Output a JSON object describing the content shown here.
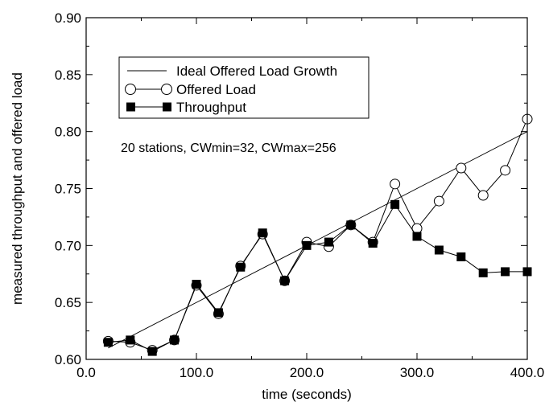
{
  "chart_data": {
    "type": "line",
    "title": "",
    "xlabel": "time (seconds)",
    "ylabel": "measured throughput and offered load",
    "xlim": [
      0,
      400
    ],
    "ylim": [
      0.6,
      0.9
    ],
    "x_ticks": [
      0,
      100,
      200,
      300,
      400
    ],
    "x_tick_labels": [
      "0.0",
      "100.0",
      "200.0",
      "300.0",
      "400.0"
    ],
    "y_ticks": [
      0.6,
      0.65,
      0.7,
      0.75,
      0.8,
      0.85,
      0.9
    ],
    "y_tick_labels": [
      "0.60",
      "0.65",
      "0.70",
      "0.75",
      "0.80",
      "0.85",
      "0.90"
    ],
    "grid": false,
    "legend_position": "top-left",
    "annotation": "20 stations, CWmin=32, CWmax=256",
    "series": [
      {
        "name": "Ideal Offered Load Growth",
        "marker": "none",
        "x": [
          20,
          400
        ],
        "y": [
          0.61,
          0.8
        ]
      },
      {
        "name": "Offered Load",
        "marker": "open-circle",
        "x": [
          20,
          40,
          60,
          80,
          100,
          120,
          140,
          160,
          180,
          200,
          220,
          240,
          260,
          280,
          300,
          320,
          340,
          360,
          380,
          400
        ],
        "y": [
          0.616,
          0.615,
          0.608,
          0.617,
          0.665,
          0.64,
          0.682,
          0.71,
          0.669,
          0.703,
          0.699,
          0.718,
          0.703,
          0.754,
          0.715,
          0.739,
          0.768,
          0.744,
          0.766,
          0.811
        ]
      },
      {
        "name": "Throughput",
        "marker": "filled-square",
        "x": [
          20,
          40,
          60,
          80,
          100,
          120,
          140,
          160,
          180,
          200,
          220,
          240,
          260,
          280,
          300,
          320,
          340,
          360,
          380,
          400
        ],
        "y": [
          0.615,
          0.617,
          0.607,
          0.617,
          0.666,
          0.641,
          0.681,
          0.711,
          0.669,
          0.7,
          0.703,
          0.718,
          0.702,
          0.736,
          0.708,
          0.696,
          0.69,
          0.676,
          0.677,
          0.677
        ]
      }
    ]
  }
}
